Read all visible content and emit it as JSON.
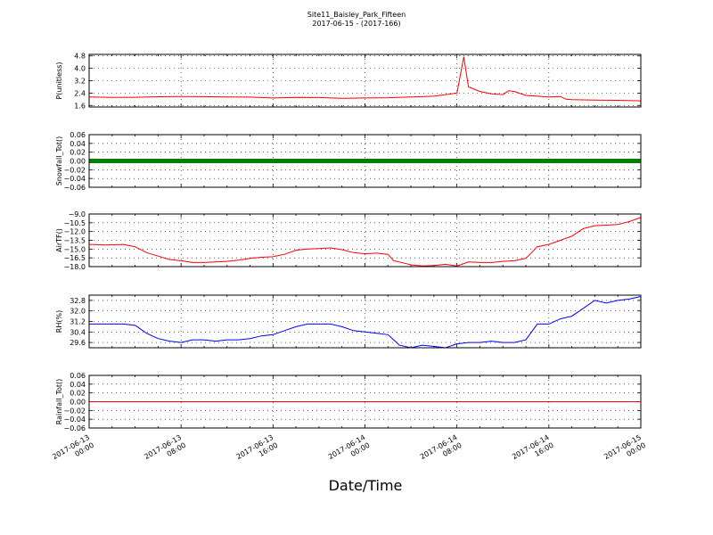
{
  "figure": {
    "title_line1": "Site11_Baisley_Park_Fifteen",
    "title_line2": "2017-06-15 - (2017-166)",
    "xlabel": "Date/Time"
  },
  "chart_data": [
    {
      "type": "line",
      "ylabel": "P(unitless)",
      "ylim": [
        1.5,
        4.9
      ],
      "yticks": [
        1.6,
        2.4,
        3.2,
        4.0,
        4.8
      ],
      "ytick_labels": [
        "1.6",
        "2.4",
        "3.2",
        "4.0",
        "4.8"
      ],
      "color": "#ff0000",
      "grid": true,
      "series": [
        {
          "x": [
            0,
            2,
            4,
            6,
            8,
            10,
            12,
            14,
            16,
            18,
            20,
            22,
            24,
            26,
            28,
            30,
            31,
            32,
            32.6,
            33,
            34,
            35,
            36,
            36.5,
            37,
            38,
            40,
            41,
            41.5,
            42,
            44,
            46,
            48
          ],
          "values": [
            2.15,
            2.12,
            2.13,
            2.16,
            2.18,
            2.17,
            2.15,
            2.14,
            2.08,
            2.12,
            2.11,
            2.06,
            2.08,
            2.1,
            2.15,
            2.2,
            2.3,
            2.4,
            4.75,
            2.8,
            2.5,
            2.35,
            2.3,
            2.55,
            2.5,
            2.25,
            2.15,
            2.18,
            2.0,
            1.98,
            1.95,
            1.93,
            1.9
          ]
        }
      ]
    },
    {
      "type": "line",
      "ylabel": "Snowfall_Tot()",
      "ylim": [
        -0.06,
        0.06
      ],
      "yticks": [
        -0.06,
        -0.04,
        -0.02,
        0.0,
        0.02,
        0.04,
        0.06
      ],
      "ytick_labels": [
        "−0.06",
        "−0.04",
        "−0.02",
        "0.00",
        "0.02",
        "0.04",
        "0.06"
      ],
      "color": "#008000",
      "grid": true,
      "markers": true,
      "series": [
        {
          "x": [
            0,
            48
          ],
          "values": [
            0.0,
            0.0
          ]
        }
      ]
    },
    {
      "type": "line",
      "ylabel": "AirTF()",
      "ylim": [
        -18.0,
        -9.0
      ],
      "yticks": [
        -18.0,
        -16.5,
        -15.0,
        -13.5,
        -12.0,
        -10.5,
        -9.0
      ],
      "ytick_labels": [
        "−18.0",
        "−16.5",
        "−15.0",
        "−13.5",
        "−12.0",
        "−10.5",
        "−9.0"
      ],
      "color": "#ff0000",
      "grid": true,
      "series": [
        {
          "x": [
            0,
            1.5,
            3,
            4,
            5,
            6,
            7,
            8,
            9,
            10,
            11,
            12,
            13,
            14,
            15,
            16,
            17,
            18,
            19,
            20,
            21,
            22,
            23,
            24,
            25,
            26,
            26.5,
            27,
            28,
            29,
            30,
            31,
            32,
            33,
            34,
            35,
            36,
            37,
            38,
            39,
            40,
            41,
            42,
            43,
            44,
            45,
            46,
            47,
            48
          ],
          "values": [
            -14.2,
            -14.3,
            -14.2,
            -14.6,
            -15.6,
            -16.2,
            -16.8,
            -17.0,
            -17.3,
            -17.3,
            -17.2,
            -17.1,
            -16.9,
            -16.6,
            -16.4,
            -16.3,
            -15.9,
            -15.2,
            -15.0,
            -14.9,
            -14.8,
            -15.1,
            -15.6,
            -15.8,
            -15.7,
            -15.9,
            -17.0,
            -17.2,
            -17.7,
            -17.9,
            -17.8,
            -17.6,
            -17.9,
            -17.2,
            -17.3,
            -17.3,
            -17.1,
            -17.0,
            -16.6,
            -14.6,
            -14.2,
            -13.5,
            -12.8,
            -11.5,
            -11.0,
            -10.9,
            -10.8,
            -10.3,
            -9.6
          ]
        }
      ]
    },
    {
      "type": "line",
      "ylabel": "RH(%)",
      "ylim": [
        29.2,
        33.2
      ],
      "yticks": [
        29.6,
        30.4,
        31.2,
        32.0,
        32.8
      ],
      "ytick_labels": [
        "29.6",
        "30.4",
        "31.2",
        "32.0",
        "32.8"
      ],
      "color": "#0000ff",
      "grid": true,
      "series": [
        {
          "x": [
            0,
            1,
            2,
            3,
            4,
            5,
            6,
            7,
            8,
            9,
            10,
            11,
            12,
            13,
            14,
            15,
            16,
            17,
            18,
            19,
            20,
            21,
            22,
            23,
            24,
            25,
            26,
            27,
            28,
            29,
            30,
            31,
            32,
            33,
            34,
            35,
            36,
            37,
            38,
            39,
            40,
            41,
            42,
            43,
            44,
            45,
            46,
            47,
            48
          ],
          "values": [
            31.0,
            31.0,
            31.0,
            31.0,
            30.9,
            30.3,
            29.9,
            29.7,
            29.6,
            29.8,
            29.8,
            29.7,
            29.8,
            29.8,
            29.9,
            30.1,
            30.2,
            30.5,
            30.8,
            31.0,
            31.0,
            31.0,
            30.8,
            30.5,
            30.4,
            30.3,
            30.2,
            29.4,
            29.2,
            29.4,
            29.3,
            29.2,
            29.5,
            29.6,
            29.6,
            29.7,
            29.6,
            29.6,
            29.8,
            31.0,
            31.0,
            31.4,
            31.6,
            32.2,
            32.8,
            32.6,
            32.8,
            32.9,
            33.1
          ]
        }
      ]
    },
    {
      "type": "line",
      "ylabel": "Rainfall_Tot()",
      "ylim": [
        -0.06,
        0.06
      ],
      "yticks": [
        -0.06,
        -0.04,
        -0.02,
        0.0,
        0.02,
        0.04,
        0.06
      ],
      "ytick_labels": [
        "−0.06",
        "−0.04",
        "−0.02",
        "0.00",
        "0.02",
        "0.04",
        "0.06"
      ],
      "color": "#ff0000",
      "grid": true,
      "series": [
        {
          "x": [
            0,
            48
          ],
          "values": [
            0.0,
            0.0
          ]
        }
      ]
    }
  ],
  "xaxis": {
    "xlim": [
      0,
      48
    ],
    "ticks": [
      0,
      8,
      16,
      24,
      32,
      40,
      48
    ],
    "tick_labels": [
      [
        "2017-06-13",
        "00:00"
      ],
      [
        "2017-06-13",
        "08:00"
      ],
      [
        "2017-06-13",
        "16:00"
      ],
      [
        "2017-06-14",
        "00:00"
      ],
      [
        "2017-06-14",
        "08:00"
      ],
      [
        "2017-06-14",
        "16:00"
      ],
      [
        "2017-06-15",
        "00:00"
      ]
    ]
  }
}
